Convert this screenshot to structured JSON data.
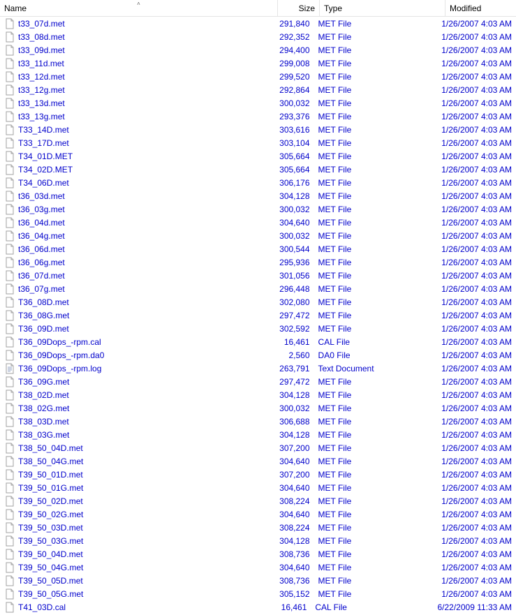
{
  "columns": {
    "name": "Name",
    "size": "Size",
    "type": "Type",
    "modified": "Modified"
  },
  "sort": {
    "column": "name",
    "direction": "asc"
  },
  "colors": {
    "link": "#0000cc",
    "header_text": "#000000",
    "border": "#e5e5e5",
    "icon_page": "#ffffff",
    "icon_border": "#a0a0a0",
    "icon_lines": "#9aa7c4",
    "icon_fold": "#d8d8d8"
  },
  "files": [
    {
      "name": "t33_07d.met",
      "size": "291,840",
      "type": "MET File",
      "modified": "1/26/2007 4:03 AM",
      "icon": "file"
    },
    {
      "name": "t33_08d.met",
      "size": "292,352",
      "type": "MET File",
      "modified": "1/26/2007 4:03 AM",
      "icon": "file"
    },
    {
      "name": "t33_09d.met",
      "size": "294,400",
      "type": "MET File",
      "modified": "1/26/2007 4:03 AM",
      "icon": "file"
    },
    {
      "name": "t33_11d.met",
      "size": "299,008",
      "type": "MET File",
      "modified": "1/26/2007 4:03 AM",
      "icon": "file"
    },
    {
      "name": "t33_12d.met",
      "size": "299,520",
      "type": "MET File",
      "modified": "1/26/2007 4:03 AM",
      "icon": "file"
    },
    {
      "name": "t33_12g.met",
      "size": "292,864",
      "type": "MET File",
      "modified": "1/26/2007 4:03 AM",
      "icon": "file"
    },
    {
      "name": "t33_13d.met",
      "size": "300,032",
      "type": "MET File",
      "modified": "1/26/2007 4:03 AM",
      "icon": "file"
    },
    {
      "name": "t33_13g.met",
      "size": "293,376",
      "type": "MET File",
      "modified": "1/26/2007 4:03 AM",
      "icon": "file"
    },
    {
      "name": "T33_14D.met",
      "size": "303,616",
      "type": "MET File",
      "modified": "1/26/2007 4:03 AM",
      "icon": "file"
    },
    {
      "name": "T33_17D.met",
      "size": "303,104",
      "type": "MET File",
      "modified": "1/26/2007 4:03 AM",
      "icon": "file"
    },
    {
      "name": "T34_01D.MET",
      "size": "305,664",
      "type": "MET File",
      "modified": "1/26/2007 4:03 AM",
      "icon": "file"
    },
    {
      "name": "T34_02D.MET",
      "size": "305,664",
      "type": "MET File",
      "modified": "1/26/2007 4:03 AM",
      "icon": "file"
    },
    {
      "name": "T34_06D.met",
      "size": "306,176",
      "type": "MET File",
      "modified": "1/26/2007 4:03 AM",
      "icon": "file"
    },
    {
      "name": "t36_03d.met",
      "size": "304,128",
      "type": "MET File",
      "modified": "1/26/2007 4:03 AM",
      "icon": "file"
    },
    {
      "name": "t36_03g.met",
      "size": "300,032",
      "type": "MET File",
      "modified": "1/26/2007 4:03 AM",
      "icon": "file"
    },
    {
      "name": "t36_04d.met",
      "size": "304,640",
      "type": "MET File",
      "modified": "1/26/2007 4:03 AM",
      "icon": "file"
    },
    {
      "name": "t36_04g.met",
      "size": "300,032",
      "type": "MET File",
      "modified": "1/26/2007 4:03 AM",
      "icon": "file"
    },
    {
      "name": "t36_06d.met",
      "size": "300,544",
      "type": "MET File",
      "modified": "1/26/2007 4:03 AM",
      "icon": "file"
    },
    {
      "name": "t36_06g.met",
      "size": "295,936",
      "type": "MET File",
      "modified": "1/26/2007 4:03 AM",
      "icon": "file"
    },
    {
      "name": "t36_07d.met",
      "size": "301,056",
      "type": "MET File",
      "modified": "1/26/2007 4:03 AM",
      "icon": "file"
    },
    {
      "name": "t36_07g.met",
      "size": "296,448",
      "type": "MET File",
      "modified": "1/26/2007 4:03 AM",
      "icon": "file"
    },
    {
      "name": "T36_08D.met",
      "size": "302,080",
      "type": "MET File",
      "modified": "1/26/2007 4:03 AM",
      "icon": "file"
    },
    {
      "name": "T36_08G.met",
      "size": "297,472",
      "type": "MET File",
      "modified": "1/26/2007 4:03 AM",
      "icon": "file"
    },
    {
      "name": "T36_09D.met",
      "size": "302,592",
      "type": "MET File",
      "modified": "1/26/2007 4:03 AM",
      "icon": "file"
    },
    {
      "name": "T36_09Dops_-rpm.cal",
      "size": "16,461",
      "type": "CAL File",
      "modified": "1/26/2007 4:03 AM",
      "icon": "file"
    },
    {
      "name": "T36_09Dops_-rpm.da0",
      "size": "2,560",
      "type": "DA0 File",
      "modified": "1/26/2007 4:03 AM",
      "icon": "file"
    },
    {
      "name": "T36_09Dops_-rpm.log",
      "size": "263,791",
      "type": "Text Document",
      "modified": "1/26/2007 4:03 AM",
      "icon": "text"
    },
    {
      "name": "T36_09G.met",
      "size": "297,472",
      "type": "MET File",
      "modified": "1/26/2007 4:03 AM",
      "icon": "file"
    },
    {
      "name": "T38_02D.met",
      "size": "304,128",
      "type": "MET File",
      "modified": "1/26/2007 4:03 AM",
      "icon": "file"
    },
    {
      "name": "T38_02G.met",
      "size": "300,032",
      "type": "MET File",
      "modified": "1/26/2007 4:03 AM",
      "icon": "file"
    },
    {
      "name": "T38_03D.met",
      "size": "306,688",
      "type": "MET File",
      "modified": "1/26/2007 4:03 AM",
      "icon": "file"
    },
    {
      "name": "T38_03G.met",
      "size": "304,128",
      "type": "MET File",
      "modified": "1/26/2007 4:03 AM",
      "icon": "file"
    },
    {
      "name": "T38_50_04D.met",
      "size": "307,200",
      "type": "MET File",
      "modified": "1/26/2007 4:03 AM",
      "icon": "file"
    },
    {
      "name": "T38_50_04G.met",
      "size": "304,640",
      "type": "MET File",
      "modified": "1/26/2007 4:03 AM",
      "icon": "file"
    },
    {
      "name": "T39_50_01D.met",
      "size": "307,200",
      "type": "MET File",
      "modified": "1/26/2007 4:03 AM",
      "icon": "file"
    },
    {
      "name": "T39_50_01G.met",
      "size": "304,640",
      "type": "MET File",
      "modified": "1/26/2007 4:03 AM",
      "icon": "file"
    },
    {
      "name": "T39_50_02D.met",
      "size": "308,224",
      "type": "MET File",
      "modified": "1/26/2007 4:03 AM",
      "icon": "file"
    },
    {
      "name": "T39_50_02G.met",
      "size": "304,640",
      "type": "MET File",
      "modified": "1/26/2007 4:03 AM",
      "icon": "file"
    },
    {
      "name": "T39_50_03D.met",
      "size": "308,224",
      "type": "MET File",
      "modified": "1/26/2007 4:03 AM",
      "icon": "file"
    },
    {
      "name": "T39_50_03G.met",
      "size": "304,128",
      "type": "MET File",
      "modified": "1/26/2007 4:03 AM",
      "icon": "file"
    },
    {
      "name": "T39_50_04D.met",
      "size": "308,736",
      "type": "MET File",
      "modified": "1/26/2007 4:03 AM",
      "icon": "file"
    },
    {
      "name": "T39_50_04G.met",
      "size": "304,640",
      "type": "MET File",
      "modified": "1/26/2007 4:03 AM",
      "icon": "file"
    },
    {
      "name": "T39_50_05D.met",
      "size": "308,736",
      "type": "MET File",
      "modified": "1/26/2007 4:03 AM",
      "icon": "file"
    },
    {
      "name": "T39_50_05G.met",
      "size": "305,152",
      "type": "MET File",
      "modified": "1/26/2007 4:03 AM",
      "icon": "file"
    },
    {
      "name": "T41_03D.cal",
      "size": "16,461",
      "type": "CAL File",
      "modified": "6/22/2009 11:33 AM",
      "icon": "file"
    }
  ]
}
